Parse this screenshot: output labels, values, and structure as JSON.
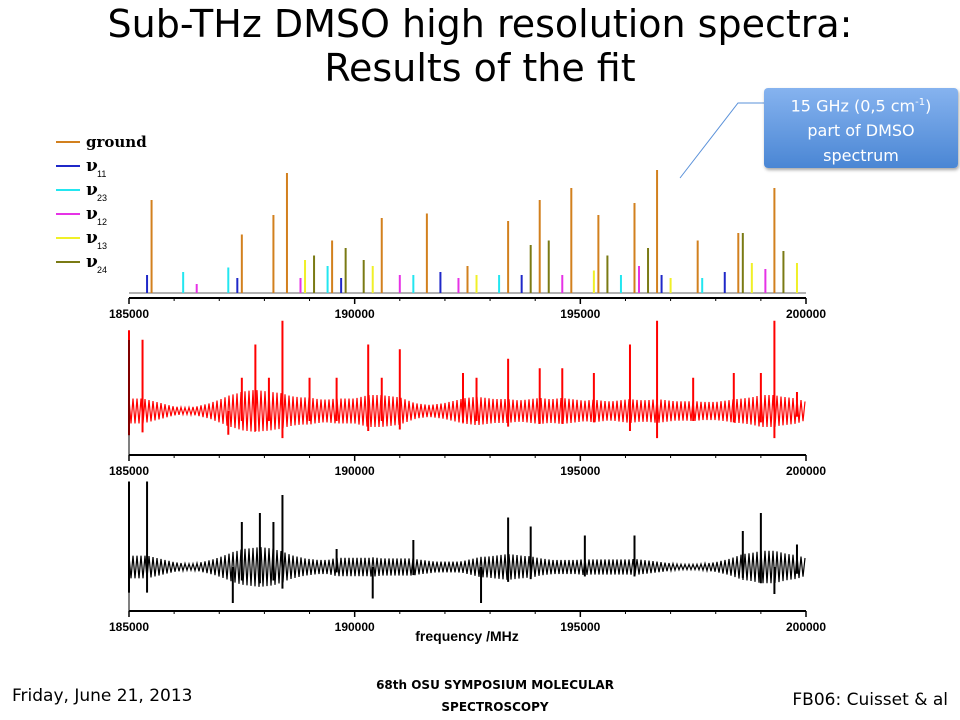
{
  "title": {
    "line1": "Sub-THz DMSO high resolution spectra:",
    "line2": "Results of the fit"
  },
  "callout": {
    "line1_pre": "15 GHz (0,5 cm",
    "line1_sup": "-1",
    "line1_post": ")",
    "line2": "part of DMSO",
    "line3": "spectrum"
  },
  "footer": {
    "date": "Friday, June 21, 2013",
    "symposium": "68th OSU SYMPOSIUM MOLECULAR SPECTROSCOPY",
    "ref": "FB06: Cuisset & al"
  },
  "colors": {
    "ground": "#d2801e",
    "v11": "#1f28c8",
    "v23": "#23e6f0",
    "v12": "#e632e6",
    "v13": "#f0f028",
    "v24": "#7a7a14",
    "fit": "#ff0000",
    "exp": "#000000",
    "callout": "#5a91d9"
  },
  "chart_data": [
    {
      "type": "bar",
      "name": "line positions",
      "xlabel": "",
      "xlim": [
        185000,
        200000
      ],
      "ylim": [
        0,
        1
      ],
      "xticks": [
        "185000",
        "190000",
        "195000",
        "200000"
      ],
      "legend_position": "left",
      "series": [
        {
          "name": "ground",
          "key": "ground",
          "label_main": "ground",
          "label_sub": "",
          "x": [
            185500,
            187500,
            188200,
            188500,
            189500,
            190600,
            191600,
            192500,
            193400,
            194100,
            194800,
            195400,
            196200,
            196700,
            197600,
            198500,
            199300
          ],
          "values": [
            0.62,
            0.39,
            0.52,
            0.8,
            0.35,
            0.5,
            0.53,
            0.18,
            0.48,
            0.62,
            0.7,
            0.52,
            0.6,
            0.82,
            0.35,
            0.4,
            0.7
          ]
        },
        {
          "name": "ν11",
          "key": "v11",
          "label_main": "ν",
          "label_sub": "11",
          "x": [
            185400,
            187400,
            189700,
            191900,
            193700,
            196800,
            198200
          ],
          "values": [
            0.12,
            0.1,
            0.1,
            0.14,
            0.12,
            0.12,
            0.14
          ]
        },
        {
          "name": "ν23",
          "key": "v23",
          "label_main": "ν",
          "label_sub": "23",
          "x": [
            186200,
            187200,
            189400,
            191300,
            193200,
            195900,
            197700
          ],
          "values": [
            0.14,
            0.17,
            0.18,
            0.12,
            0.12,
            0.12,
            0.1
          ]
        },
        {
          "name": "ν12",
          "key": "v12",
          "label_main": "ν",
          "label_sub": "12",
          "x": [
            186500,
            188800,
            191000,
            192300,
            194600,
            196300,
            199100
          ],
          "values": [
            0.06,
            0.1,
            0.12,
            0.1,
            0.12,
            0.18,
            0.16
          ]
        },
        {
          "name": "ν13",
          "key": "v13",
          "label_main": "ν",
          "label_sub": "13",
          "x": [
            188900,
            190400,
            192700,
            195300,
            197000,
            198800,
            199800
          ],
          "values": [
            0.22,
            0.18,
            0.12,
            0.15,
            0.1,
            0.2,
            0.2
          ]
        },
        {
          "name": "ν24",
          "key": "v24",
          "label_main": "ν",
          "label_sub": "24",
          "x": [
            189100,
            189800,
            190200,
            193900,
            194300,
            195600,
            196500,
            198600,
            199500
          ],
          "values": [
            0.25,
            0.3,
            0.22,
            0.32,
            0.35,
            0.25,
            0.3,
            0.4,
            0.28
          ]
        }
      ]
    },
    {
      "type": "line",
      "name": "simulated spectrum (fit)",
      "xlim": [
        185000,
        200000
      ],
      "xticks": [
        "185000",
        "190000",
        "195000",
        "200000"
      ],
      "xlabel": "",
      "series_key": "fit",
      "peaks": {
        "x": [
          185000,
          185300,
          187200,
          187500,
          187800,
          188100,
          188400,
          189000,
          189600,
          190300,
          190600,
          191000,
          192400,
          192700,
          193400,
          194100,
          194600,
          195300,
          196100,
          196700,
          197500,
          198400,
          199000,
          199300,
          199800
        ],
        "values": [
          0.85,
          0.75,
          -0.25,
          0.35,
          0.7,
          0.35,
          0.95,
          0.35,
          0.35,
          0.7,
          0.35,
          0.65,
          0.4,
          0.35,
          0.55,
          0.45,
          0.45,
          0.4,
          0.7,
          0.95,
          0.35,
          0.4,
          0.4,
          0.95,
          0.2
        ]
      }
    },
    {
      "type": "line",
      "name": "experimental spectrum",
      "xlim": [
        185000,
        200000
      ],
      "xticks": [
        "185000",
        "190000",
        "195000",
        "200000"
      ],
      "xlabel": "frequency /MHz",
      "series_key": "exp",
      "peaks": {
        "x": [
          185000,
          185400,
          187300,
          187500,
          187900,
          188200,
          188400,
          189600,
          190400,
          191300,
          192800,
          193400,
          193900,
          195100,
          196200,
          198600,
          199000,
          199300,
          199800
        ],
        "values": [
          0.95,
          0.95,
          -0.4,
          0.5,
          0.6,
          0.5,
          0.8,
          0.2,
          -0.35,
          0.3,
          -0.4,
          0.55,
          0.45,
          0.35,
          0.35,
          0.4,
          0.6,
          -0.3,
          0.25
        ]
      }
    }
  ]
}
